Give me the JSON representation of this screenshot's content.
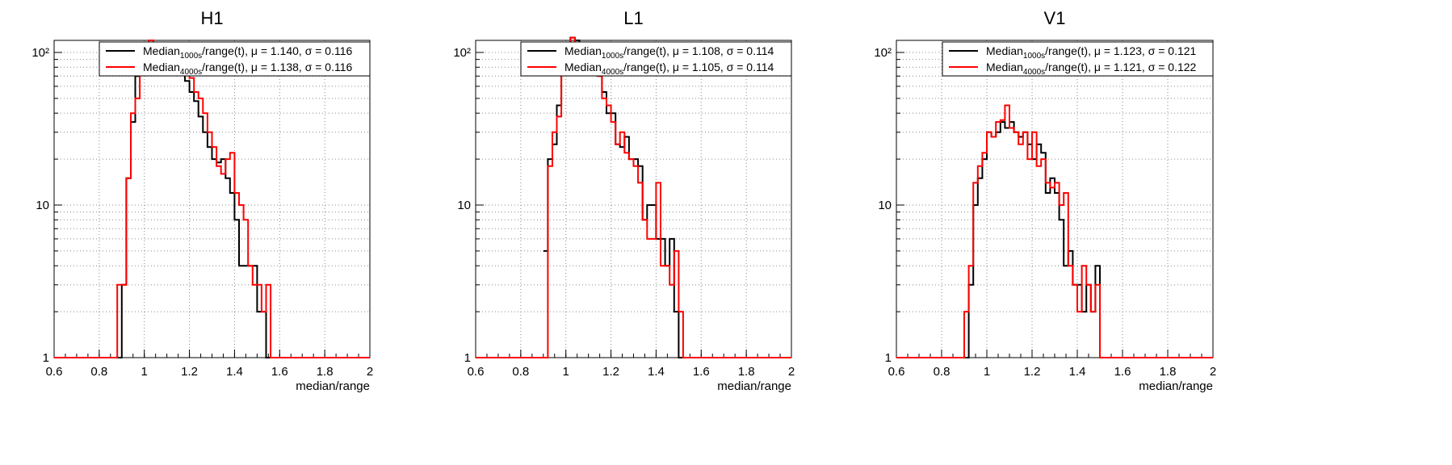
{
  "chart_data": [
    {
      "type": "histogram",
      "title": "H1",
      "xlabel": "median/range",
      "ylabel": "",
      "xlim": [
        0.6,
        2.0
      ],
      "ylim": [
        1,
        120
      ],
      "yscale": "log",
      "grid": true,
      "legend_position": "top-right",
      "xticks": [
        "0.6",
        "0.8",
        "1",
        "1.2",
        "1.4",
        "1.6",
        "1.8",
        "2"
      ],
      "yticks": [
        "1",
        "10",
        "10²"
      ],
      "legend": [
        {
          "pre": "Median",
          "sub": "1000s",
          "post": "/range(t), μ = 1.140, σ = 0.116",
          "color": "#000000"
        },
        {
          "pre": "Median",
          "sub": "4000s",
          "post": "/range(t), μ = 1.138, σ = 0.116",
          "color": "#ff0000"
        }
      ],
      "series": [
        {
          "name": "Median_1000s/range(t)",
          "color": "#000000",
          "x": [
            0.88,
            0.9,
            0.92,
            0.94,
            0.96,
            0.98,
            1.0,
            1.02,
            1.04,
            1.06,
            1.08,
            1.1,
            1.12,
            1.14,
            1.16,
            1.18,
            1.2,
            1.22,
            1.24,
            1.26,
            1.28,
            1.3,
            1.32,
            1.34,
            1.36,
            1.38,
            1.4,
            1.42,
            1.44,
            1.46,
            1.48,
            1.5,
            1.52,
            1.54,
            1.56
          ],
          "y": [
            1,
            3,
            15,
            35,
            70,
            100,
            105,
            110,
            110,
            110,
            100,
            100,
            90,
            85,
            75,
            65,
            55,
            48,
            38,
            30,
            24,
            20,
            19,
            20,
            15,
            12,
            8,
            4,
            4,
            4,
            4,
            2,
            2,
            1,
            1
          ]
        },
        {
          "name": "Median_4000s/range(t)",
          "color": "#ff0000",
          "x": [
            0.84,
            0.86,
            0.88,
            0.9,
            0.92,
            0.94,
            0.96,
            0.98,
            1.0,
            1.02,
            1.04,
            1.06,
            1.08,
            1.1,
            1.12,
            1.14,
            1.16,
            1.18,
            1.2,
            1.22,
            1.24,
            1.26,
            1.28,
            1.3,
            1.32,
            1.34,
            1.36,
            1.38,
            1.4,
            1.42,
            1.44,
            1.46,
            1.48,
            1.5,
            1.52,
            1.54,
            1.56,
            1.58
          ],
          "y": [
            1,
            1,
            3,
            3,
            15,
            40,
            50,
            90,
            110,
            120,
            110,
            110,
            100,
            105,
            90,
            90,
            85,
            78,
            68,
            55,
            50,
            40,
            30,
            24,
            18,
            16,
            20,
            22,
            12,
            10,
            8,
            4,
            3,
            3,
            2,
            3,
            1,
            1
          ]
        }
      ]
    },
    {
      "type": "histogram",
      "title": "L1",
      "xlabel": "median/range",
      "ylabel": "",
      "xlim": [
        0.6,
        2.0
      ],
      "ylim": [
        1,
        120
      ],
      "yscale": "log",
      "grid": true,
      "legend_position": "top-right",
      "xticks": [
        "0.6",
        "0.8",
        "1",
        "1.2",
        "1.4",
        "1.6",
        "1.8",
        "2"
      ],
      "yticks": [
        "1",
        "10",
        "10²"
      ],
      "legend": [
        {
          "pre": "Median",
          "sub": "1000s",
          "post": "/range(t), μ = 1.108, σ = 0.114",
          "color": "#000000"
        },
        {
          "pre": "Median",
          "sub": "4000s",
          "post": "/range(t), μ = 1.105, σ = 0.114",
          "color": "#ff0000"
        }
      ],
      "series": [
        {
          "name": "Median_1000s/range(t)",
          "color": "#000000",
          "x": [
            0.9,
            0.92,
            0.94,
            0.96,
            0.98,
            1.0,
            1.02,
            1.04,
            1.06,
            1.08,
            1.1,
            1.12,
            1.14,
            1.16,
            1.18,
            1.2,
            1.22,
            1.24,
            1.26,
            1.28,
            1.3,
            1.32,
            1.34,
            1.36,
            1.38,
            1.4,
            1.42,
            1.44,
            1.46,
            1.48,
            1.5,
            1.52,
            1.54
          ],
          "y": [
            5,
            20,
            25,
            45,
            100,
            110,
            125,
            120,
            110,
            105,
            95,
            80,
            75,
            55,
            40,
            40,
            25,
            24,
            28,
            20,
            20,
            18,
            8,
            10,
            10,
            6,
            6,
            4,
            6,
            2,
            1,
            1,
            1
          ]
        },
        {
          "name": "Median_4000s/range(t)",
          "color": "#ff0000",
          "x": [
            0.9,
            0.92,
            0.94,
            0.96,
            0.98,
            1.0,
            1.02,
            1.04,
            1.06,
            1.08,
            1.1,
            1.12,
            1.14,
            1.16,
            1.18,
            1.2,
            1.22,
            1.24,
            1.26,
            1.28,
            1.3,
            1.32,
            1.34,
            1.36,
            1.38,
            1.4,
            1.42,
            1.44,
            1.46,
            1.48,
            1.5,
            1.52,
            1.54
          ],
          "y": [
            1,
            18,
            30,
            38,
            95,
            115,
            125,
            115,
            110,
            100,
            90,
            90,
            70,
            50,
            45,
            35,
            25,
            30,
            22,
            20,
            18,
            14,
            8,
            6,
            6,
            14,
            4,
            4,
            3,
            5,
            2,
            1,
            1
          ]
        }
      ]
    },
    {
      "type": "histogram",
      "title": "V1",
      "xlabel": "median/range",
      "ylabel": "",
      "xlim": [
        0.6,
        2.0
      ],
      "ylim": [
        1,
        120
      ],
      "yscale": "log",
      "grid": true,
      "legend_position": "top-right",
      "xticks": [
        "0.6",
        "0.8",
        "1",
        "1.2",
        "1.4",
        "1.6",
        "1.8",
        "2"
      ],
      "yticks": [
        "1",
        "10",
        "10²"
      ],
      "legend": [
        {
          "pre": "Median",
          "sub": "1000s",
          "post": "/range(t), μ = 1.123, σ = 0.121",
          "color": "#000000"
        },
        {
          "pre": "Median",
          "sub": "4000s",
          "post": "/range(t), μ = 1.121, σ = 0.122",
          "color": "#ff0000"
        }
      ],
      "series": [
        {
          "name": "Median_1000s/range(t)",
          "color": "#000000",
          "x": [
            0.9,
            0.92,
            0.94,
            0.96,
            0.98,
            1.0,
            1.02,
            1.04,
            1.06,
            1.08,
            1.1,
            1.12,
            1.14,
            1.16,
            1.18,
            1.2,
            1.22,
            1.24,
            1.26,
            1.28,
            1.3,
            1.32,
            1.34,
            1.36,
            1.38,
            1.4,
            1.42,
            1.44,
            1.46,
            1.48,
            1.5,
            1.52,
            1.54
          ],
          "y": [
            1,
            3,
            10,
            15,
            20,
            30,
            28,
            30,
            35,
            32,
            35,
            30,
            28,
            30,
            25,
            20,
            25,
            22,
            12,
            15,
            12,
            8,
            4,
            5,
            3,
            3,
            2,
            3,
            2,
            4,
            1,
            1,
            1
          ]
        },
        {
          "name": "Median_4000s/range(t)",
          "color": "#ff0000",
          "x": [
            0.88,
            0.9,
            0.92,
            0.94,
            0.96,
            0.98,
            1.0,
            1.02,
            1.04,
            1.06,
            1.08,
            1.1,
            1.12,
            1.14,
            1.16,
            1.18,
            1.2,
            1.22,
            1.24,
            1.26,
            1.28,
            1.3,
            1.32,
            1.34,
            1.36,
            1.38,
            1.4,
            1.42,
            1.44,
            1.46,
            1.48,
            1.5,
            1.52
          ],
          "y": [
            1,
            2,
            4,
            14,
            18,
            22,
            30,
            28,
            35,
            36,
            45,
            32,
            30,
            25,
            30,
            20,
            30,
            18,
            20,
            14,
            13,
            14,
            10,
            12,
            4,
            3,
            2,
            4,
            3,
            2,
            3,
            1,
            1
          ]
        }
      ]
    }
  ]
}
